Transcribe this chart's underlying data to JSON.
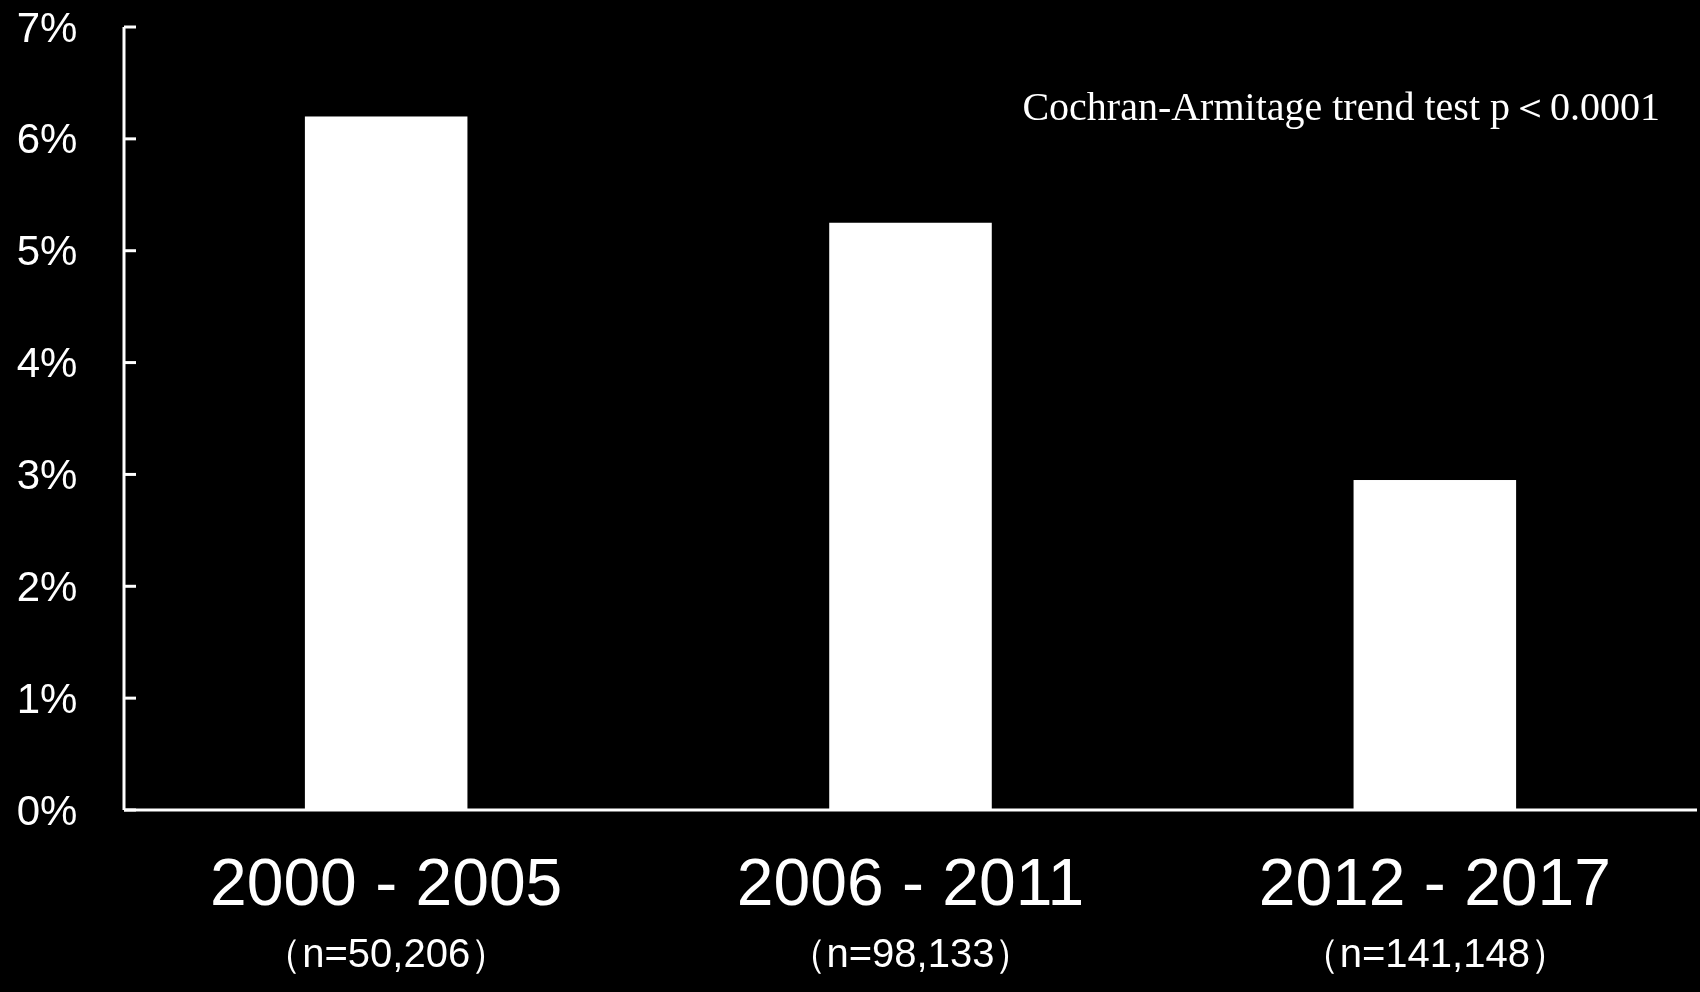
{
  "chart_data": {
    "type": "bar",
    "categories": [
      "2000 - 2005\n（n=50,206）",
      "2006 - 2011\n（n=98,133）",
      "2012 - 2017\n（n=141,148）"
    ],
    "values": [
      6.2,
      5.25,
      2.95
    ],
    "color": "#ffffff",
    "ylim": [
      0,
      7
    ],
    "yticks": [
      {
        "value": 0,
        "label": "0%"
      },
      {
        "value": 1,
        "label": "1%"
      },
      {
        "value": 2,
        "label": "2%"
      },
      {
        "value": 3,
        "label": "3%"
      },
      {
        "value": 4,
        "label": "4%"
      },
      {
        "value": 5,
        "label": "5%"
      },
      {
        "value": 6,
        "label": "6%"
      },
      {
        "value": 7,
        "label": "7%"
      }
    ],
    "annotations": [
      "Cochran-Armitage trend test  p＜0.0001"
    ],
    "grid": false
  }
}
